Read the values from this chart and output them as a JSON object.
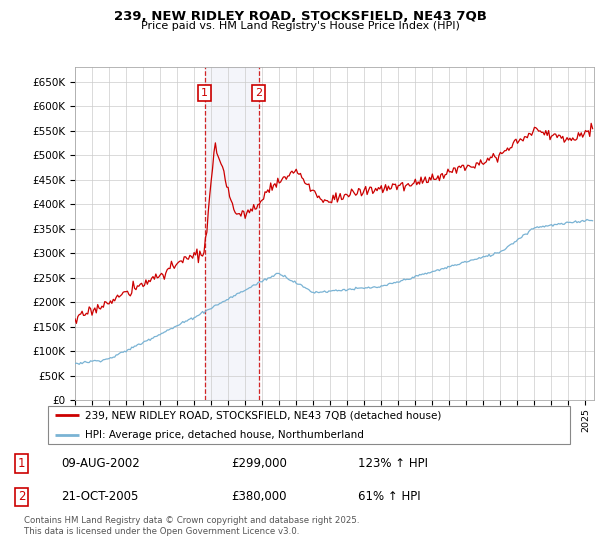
{
  "title": "239, NEW RIDLEY ROAD, STOCKSFIELD, NE43 7QB",
  "subtitle": "Price paid vs. HM Land Registry's House Price Index (HPI)",
  "legend_line1": "239, NEW RIDLEY ROAD, STOCKSFIELD, NE43 7QB (detached house)",
  "legend_line2": "HPI: Average price, detached house, Northumberland",
  "sale1_date": "09-AUG-2002",
  "sale1_price": "£299,000",
  "sale1_hpi": "123% ↑ HPI",
  "sale2_date": "21-OCT-2005",
  "sale2_price": "£380,000",
  "sale2_hpi": "61% ↑ HPI",
  "footer": "Contains HM Land Registry data © Crown copyright and database right 2025.\nThis data is licensed under the Open Government Licence v3.0.",
  "hpi_color": "#7ab3d4",
  "price_color": "#cc0000",
  "sale1_year": 2002.62,
  "sale2_year": 2005.8,
  "ylim_min": 0,
  "ylim_max": 680000,
  "xlim_min": 1995,
  "xlim_max": 2025.5,
  "background_color": "#ffffff",
  "grid_color": "#cccccc"
}
